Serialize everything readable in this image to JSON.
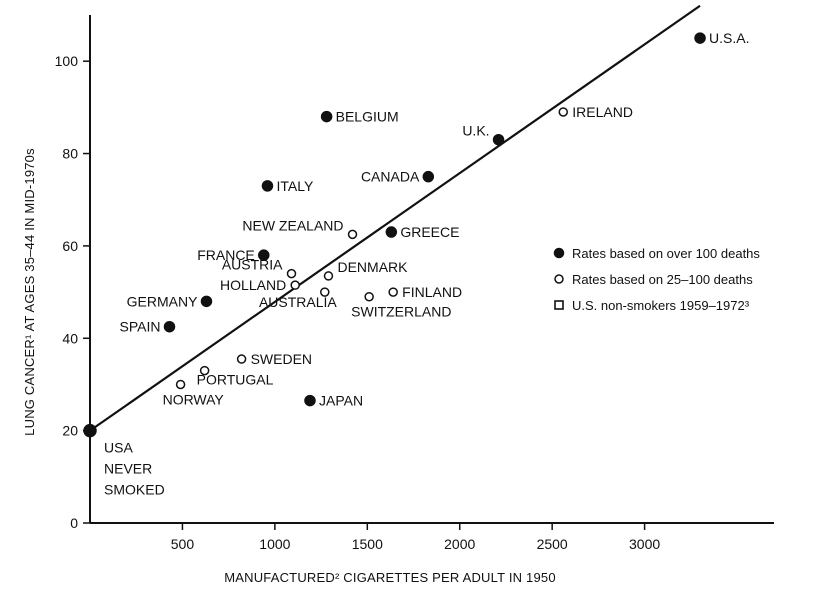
{
  "chart_data": {
    "type": "scatter",
    "xlabel": "MANUFACTURED² CIGARETTES PER ADULT IN 1950",
    "ylabel": "LUNG CANCER¹ AT AGES 35–44 IN MID-1970s",
    "xlim": [
      0,
      3700
    ],
    "ylim": [
      0,
      110
    ],
    "x_ticks": [
      500,
      1000,
      1500,
      2000,
      2500,
      3000
    ],
    "y_ticks": [
      0,
      20,
      40,
      60,
      80,
      100
    ],
    "x_tick_labels": [
      "500",
      "1000",
      "1500",
      "2000",
      "2500",
      "3000"
    ],
    "y_tick_labels": [
      "0",
      "20",
      "40",
      "60",
      "80",
      "100"
    ],
    "grid": false,
    "legend_position": "right",
    "legend": [
      {
        "marker": "filled-circle",
        "label": "Rates based on over 100 deaths"
      },
      {
        "marker": "open-circle",
        "label": "Rates based on 25–100 deaths"
      },
      {
        "marker": "open-square",
        "label": "U.S. non-smokers 1959–1972³"
      }
    ],
    "regression_line": [
      [
        0,
        20
      ],
      [
        3300,
        112
      ]
    ],
    "points": [
      {
        "label": "U.S.A.",
        "x": 3300,
        "y": 105,
        "marker": "filled",
        "label_pos": "right"
      },
      {
        "label": "IRELAND",
        "x": 2560,
        "y": 89,
        "marker": "open",
        "label_pos": "right"
      },
      {
        "label": "U.K.",
        "x": 2210,
        "y": 83,
        "marker": "filled",
        "label_pos": "left-above"
      },
      {
        "label": "BELGIUM",
        "x": 1280,
        "y": 88,
        "marker": "filled",
        "label_pos": "right"
      },
      {
        "label": "CANADA",
        "x": 1830,
        "y": 75,
        "marker": "filled",
        "label_pos": "left"
      },
      {
        "label": "ITALY",
        "x": 960,
        "y": 73,
        "marker": "filled",
        "label_pos": "right"
      },
      {
        "label": "NEW ZEALAND",
        "x": 1420,
        "y": 62.5,
        "marker": "open",
        "label_pos": "left-above"
      },
      {
        "label": "GREECE",
        "x": 1630,
        "y": 63,
        "marker": "filled",
        "label_pos": "right"
      },
      {
        "label": "FRANCE",
        "x": 940,
        "y": 58,
        "marker": "filled",
        "label_pos": "left"
      },
      {
        "label": "AUSTRIA",
        "x": 1090,
        "y": 54,
        "marker": "open",
        "label_pos": "left-above"
      },
      {
        "label": "DENMARK",
        "x": 1290,
        "y": 53.5,
        "marker": "open",
        "label_pos": "right-above"
      },
      {
        "label": "HOLLAND",
        "x": 1110,
        "y": 51.5,
        "marker": "open",
        "label_pos": "left"
      },
      {
        "label": "AUSTRALIA",
        "x": 1270,
        "y": 50,
        "marker": "open",
        "label_pos": "left-below"
      },
      {
        "label": "FINLAND",
        "x": 1640,
        "y": 50,
        "marker": "open",
        "label_pos": "right"
      },
      {
        "label": "SWITZERLAND",
        "x": 1510,
        "y": 49,
        "marker": "open",
        "label_pos": "below"
      },
      {
        "label": "GERMANY",
        "x": 630,
        "y": 48,
        "marker": "filled",
        "label_pos": "left"
      },
      {
        "label": "SPAIN",
        "x": 430,
        "y": 42.5,
        "marker": "filled",
        "label_pos": "left"
      },
      {
        "label": "SWEDEN",
        "x": 820,
        "y": 35.5,
        "marker": "open",
        "label_pos": "right"
      },
      {
        "label": "PORTUGAL",
        "x": 620,
        "y": 33,
        "marker": "open",
        "label_pos": "right-below"
      },
      {
        "label": "NORWAY",
        "x": 490,
        "y": 30,
        "marker": "open",
        "label_pos": "below"
      },
      {
        "label": "JAPAN",
        "x": 1190,
        "y": 26.5,
        "marker": "filled",
        "label_pos": "right"
      },
      {
        "label": "USA NEVER SMOKED",
        "label_lines": [
          "USA",
          "NEVER",
          "SMOKED"
        ],
        "x": 0,
        "y": 20,
        "marker": "filled",
        "label_pos": "below-right"
      }
    ]
  }
}
